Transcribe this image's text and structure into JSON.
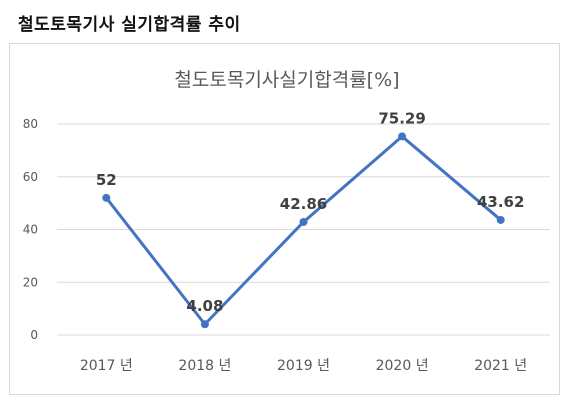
{
  "header": {
    "title": "철도토목기사 실기합격률 추이"
  },
  "chart_data": {
    "type": "line",
    "title": "철도토목기사실기합격률[%]",
    "categories": [
      "2017 년",
      "2018 년",
      "2019 년",
      "2020 년",
      "2021 년"
    ],
    "series": [
      {
        "values": [
          52,
          4.08,
          42.86,
          75.29,
          43.62
        ],
        "data_labels": [
          "52",
          "4.08",
          "42.86",
          "75.29",
          "43.62"
        ]
      }
    ],
    "ylim": [
      0,
      80
    ],
    "yticks": [
      "0",
      "20",
      "40",
      "60",
      "80"
    ],
    "grid": true,
    "line_color": "#4472c4"
  }
}
